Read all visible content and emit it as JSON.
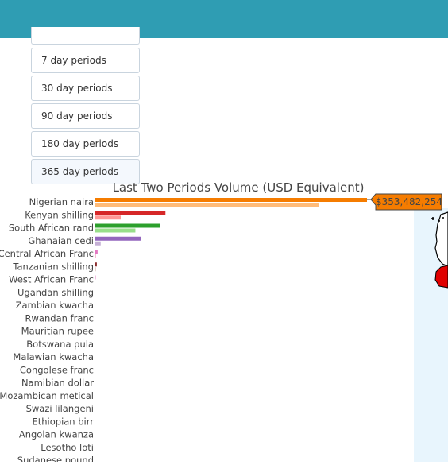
{
  "header": {
    "color": "#2f9db3"
  },
  "periods": {
    "items": [
      {
        "label": ""
      },
      {
        "label": "7 day periods"
      },
      {
        "label": "30 day periods"
      },
      {
        "label": "90 day periods"
      },
      {
        "label": "180 day periods"
      },
      {
        "label": "365 day periods"
      }
    ],
    "active_index": 5
  },
  "chart_data": {
    "type": "bar",
    "orientation": "horizontal",
    "title": "Last Two Periods Volume (USD Equivalent)",
    "categories": [
      "Nigerian naira",
      "Kenyan shilling",
      "South African rand",
      "Ghanaian cedi",
      "Central African Franc",
      "Tanzanian shilling",
      "West African Franc",
      "Ugandan shilling",
      "Zambian kwacha",
      "Rwandan franc",
      "Mauritian rupee",
      "Botswana pula",
      "Malawian kwacha",
      "Congolese franc",
      "Namibian dollar",
      "Mozambican metical",
      "Swazi lilangeni",
      "Ethiopian birr",
      "Angolan kwanza",
      "Lesotho loti",
      "Sudanese pound"
    ],
    "series": [
      {
        "period": "current",
        "values": [
          353482254,
          92000000,
          85000000,
          60000000,
          4000000,
          3000000,
          1500000,
          800000,
          300000,
          200000,
          150000,
          100000,
          80000,
          60000,
          50000,
          40000,
          30000,
          20000,
          15000,
          10000,
          5000
        ],
        "colors": [
          "#f57c00",
          "#d62728",
          "#2ca02c",
          "#9467bd",
          "#e377c2",
          "#8c2d2d",
          "#e377c2",
          "#8c564b",
          "#8c564b",
          "#8c564b",
          "#8c564b",
          "#8c564b",
          "#8c564b",
          "#8c564b",
          "#8c564b",
          "#8c564b",
          "#8c564b",
          "#8c564b",
          "#8c564b",
          "#8c564b",
          "#8c564b"
        ]
      },
      {
        "period": "previous",
        "values": [
          291000000,
          34000000,
          53000000,
          8000000,
          2000000,
          1500000,
          700000,
          400000,
          200000,
          100000,
          80000,
          60000,
          40000,
          30000,
          20000,
          15000,
          10000,
          8000,
          5000,
          3000,
          2000
        ],
        "colors": [
          "#ffbb78",
          "#ff9896",
          "#98df8a",
          "#c5b0d5",
          "#f7b6d2",
          "#c49c94",
          "#f7b6d2",
          "#c49c94",
          "#c49c94",
          "#c49c94",
          "#c49c94",
          "#c49c94",
          "#c49c94",
          "#c49c94",
          "#c49c94",
          "#c49c94",
          "#c49c94",
          "#c49c94",
          "#c49c94",
          "#c49c94",
          "#c49c94"
        ]
      }
    ],
    "xlim": [
      0,
      353482254
    ],
    "hover_label": "$353,482,254",
    "hover_color": "#f57c00"
  }
}
